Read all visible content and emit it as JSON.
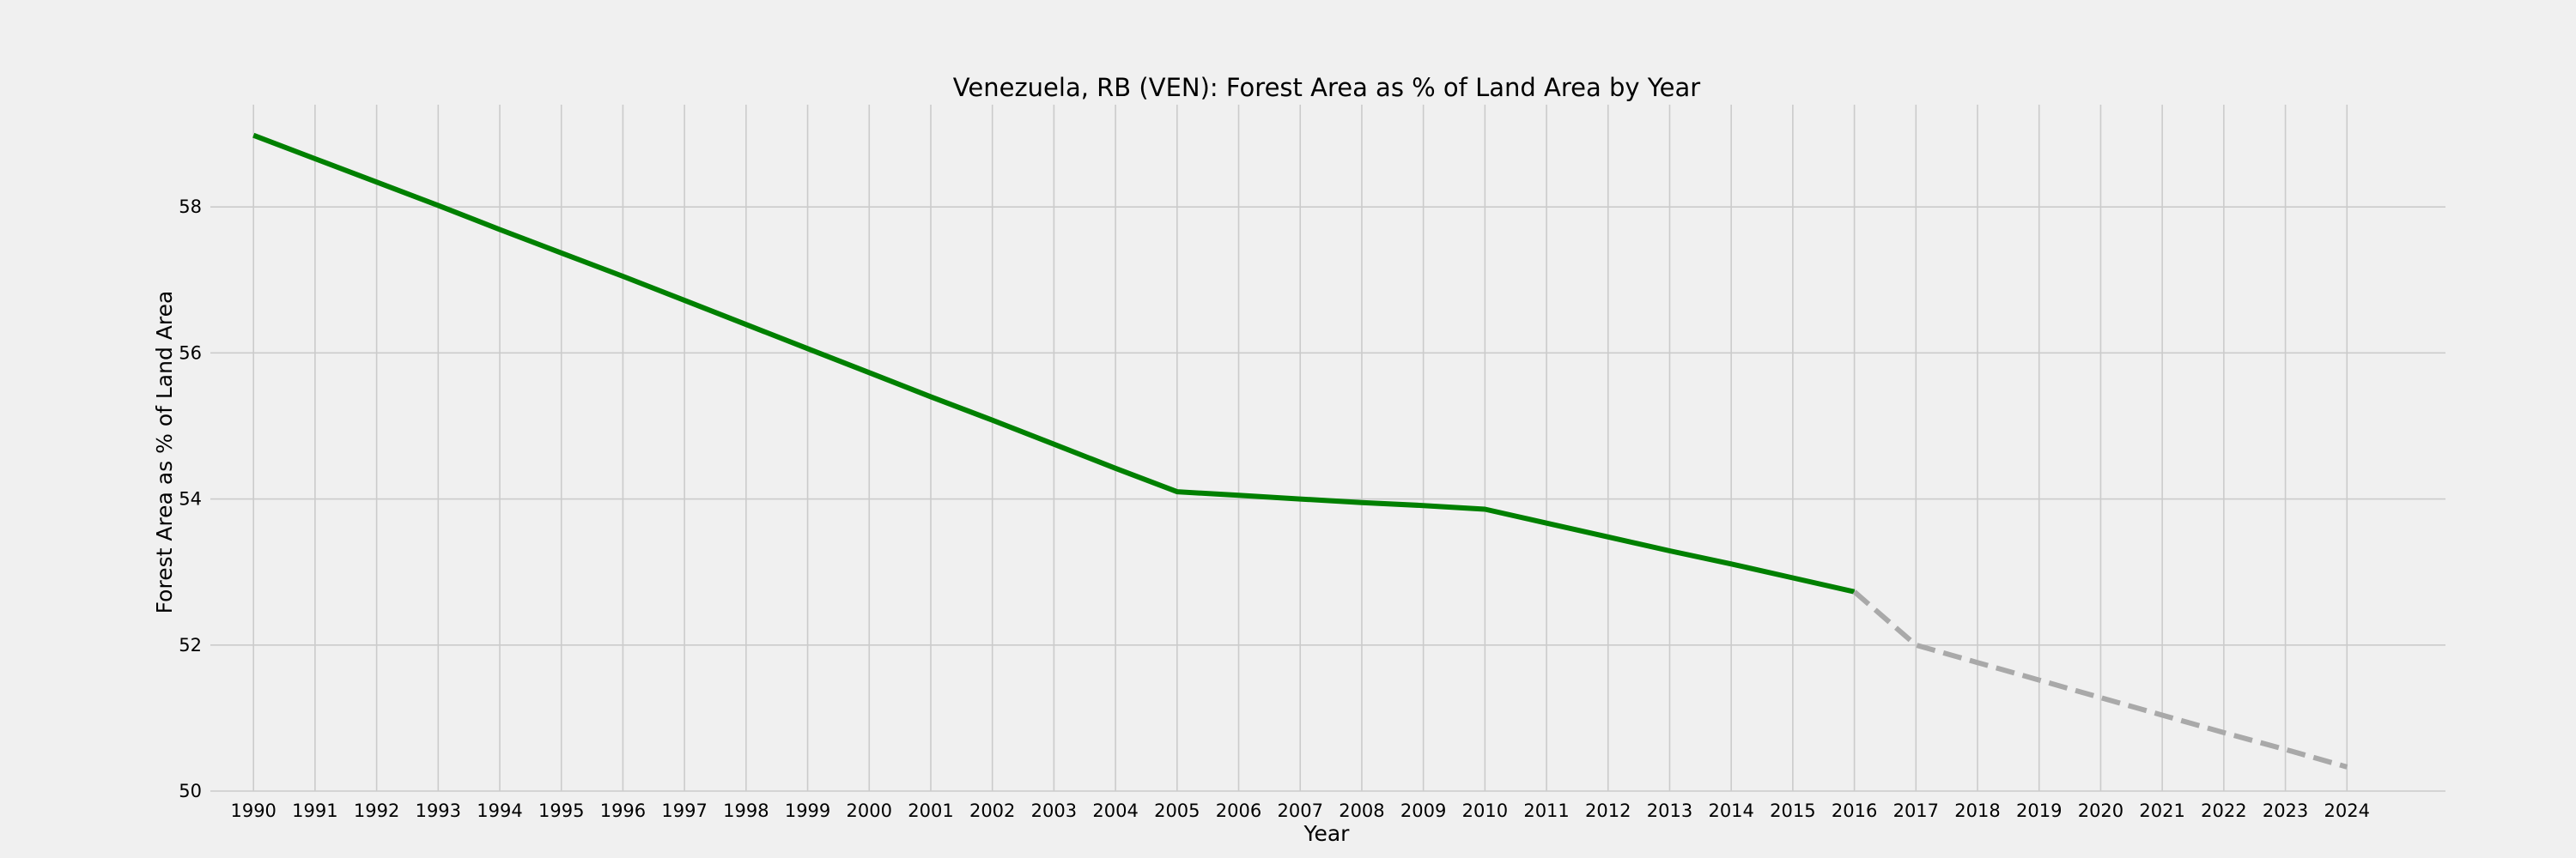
{
  "chart_data": {
    "type": "line",
    "title": "Venezuela, RB (VEN): Forest Area as % of Land Area by Year",
    "xlabel": "Year",
    "ylabel": "Forest Area as % of Land Area",
    "xlim": [
      1989.3,
      2025.6
    ],
    "ylim": [
      50.0,
      59.4
    ],
    "x_ticks": [
      1990,
      1991,
      1992,
      1993,
      1994,
      1995,
      1996,
      1997,
      1998,
      1999,
      2000,
      2001,
      2002,
      2003,
      2004,
      2005,
      2006,
      2007,
      2008,
      2009,
      2010,
      2011,
      2012,
      2013,
      2014,
      2015,
      2016,
      2017,
      2018,
      2019,
      2020,
      2021,
      2022,
      2023,
      2024
    ],
    "y_ticks": [
      50,
      52,
      54,
      56,
      58
    ],
    "grid": true,
    "legend": "none",
    "series": [
      {
        "style": "solid",
        "color": "#008000",
        "x": [
          1990,
          1991,
          1992,
          1993,
          1994,
          1995,
          1996,
          1997,
          1998,
          1999,
          2000,
          2001,
          2002,
          2003,
          2004,
          2005,
          2006,
          2007,
          2008,
          2009,
          2010,
          2011,
          2012,
          2013,
          2014,
          2015,
          2016
        ],
        "y": [
          58.98,
          58.66,
          58.34,
          58.02,
          57.69,
          57.37,
          57.05,
          56.72,
          56.39,
          56.06,
          55.73,
          55.4,
          55.08,
          54.75,
          54.42,
          54.1,
          54.05,
          54.0,
          53.95,
          53.91,
          53.86,
          53.67,
          53.48,
          53.29,
          53.11,
          52.92,
          52.73
        ]
      },
      {
        "style": "dashed",
        "color": "#a9a9a9",
        "x": [
          2016,
          2017,
          2018,
          2019,
          2020,
          2021,
          2022,
          2023,
          2024
        ],
        "y": [
          52.73,
          52.0,
          51.76,
          51.52,
          51.28,
          51.04,
          50.8,
          50.57,
          50.33
        ]
      }
    ]
  }
}
